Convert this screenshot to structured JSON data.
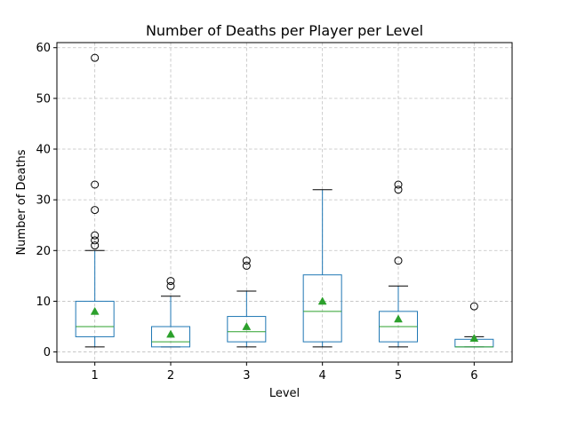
{
  "chart_data": {
    "type": "box",
    "title": "Number of Deaths per Player per Level",
    "xlabel": "Level",
    "ylabel": "Number of Deaths",
    "categories": [
      "1",
      "2",
      "3",
      "4",
      "5",
      "6"
    ],
    "ylim": [
      -2,
      61
    ],
    "yticks": [
      0,
      10,
      20,
      30,
      40,
      50,
      60
    ],
    "grid": true,
    "boxes": [
      {
        "category": "1",
        "whisker_low": 1,
        "q1": 3,
        "median": 5,
        "q3": 10,
        "whisker_high": 20,
        "mean": 8,
        "outliers": [
          21,
          22,
          23,
          28,
          33,
          58
        ]
      },
      {
        "category": "2",
        "whisker_low": 1,
        "q1": 1,
        "median": 2,
        "q3": 5,
        "whisker_high": 11,
        "mean": 3.5,
        "outliers": [
          13,
          14
        ]
      },
      {
        "category": "3",
        "whisker_low": 1,
        "q1": 2,
        "median": 4,
        "q3": 7,
        "whisker_high": 12,
        "mean": 5,
        "outliers": [
          17,
          18
        ]
      },
      {
        "category": "4",
        "whisker_low": 1,
        "q1": 2,
        "median": 8,
        "q3": 15.2,
        "whisker_high": 32,
        "mean": 10,
        "outliers": []
      },
      {
        "category": "5",
        "whisker_low": 1,
        "q1": 2,
        "median": 5,
        "q3": 8,
        "whisker_high": 13,
        "mean": 6.5,
        "outliers": [
          18,
          32,
          33
        ]
      },
      {
        "category": "6",
        "whisker_low": 1,
        "q1": 1,
        "median": 1,
        "q3": 2.5,
        "whisker_high": 3,
        "mean": 2.7,
        "outliers": [
          9
        ]
      }
    ],
    "colors": {
      "box": "#1f77b4",
      "median": "#2ca02c",
      "mean": "#2ca02c",
      "whisker_cap": "#000000",
      "outlier": "#000000",
      "grid": "#b0b0b0"
    }
  }
}
